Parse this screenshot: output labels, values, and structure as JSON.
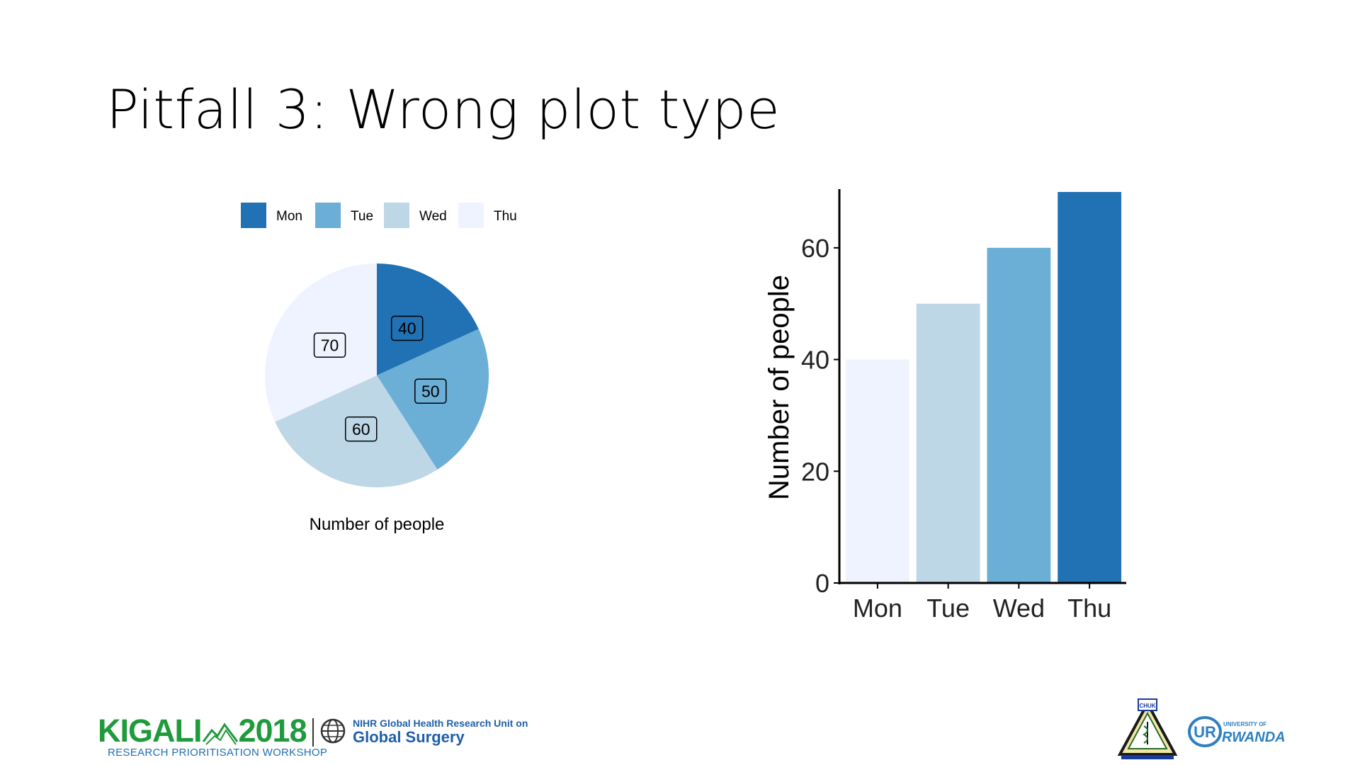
{
  "slide": {
    "title": "Pitfall 3: Wrong plot type"
  },
  "chart_data": [
    {
      "type": "pie",
      "categories": [
        "Mon",
        "Tue",
        "Wed",
        "Thu"
      ],
      "values": [
        40,
        50,
        60,
        70
      ],
      "colors": [
        "#2171b5",
        "#6baed6",
        "#bdd7e7",
        "#eff3ff"
      ],
      "xlabel": "Number of people",
      "legend": "top",
      "slice_labels": [
        "40",
        "50",
        "60",
        "70"
      ]
    },
    {
      "type": "bar",
      "categories": [
        "Mon",
        "Tue",
        "Wed",
        "Thu"
      ],
      "values": [
        40,
        50,
        60,
        70
      ],
      "colors": [
        "#eff3ff",
        "#bdd7e7",
        "#6baed6",
        "#2171b5"
      ],
      "ylabel": "Number of people",
      "ylim": [
        0,
        70
      ],
      "yticks": [
        "0",
        "20",
        "40",
        "60"
      ],
      "grid": false
    }
  ],
  "footer": {
    "kigali_left": "KIGALI",
    "kigali_right": "2018",
    "kigali_sub": "RESEARCH PRIORITISATION WORKSHOP",
    "nihr_line1": "NIHR Global Health Research Unit on",
    "nihr_line2": "Global Surgery",
    "chuk_logo": "CHUK",
    "ur_small": "UNIVERSITY OF",
    "ur_main": "RWANDA",
    "ur_mark": "UR"
  }
}
